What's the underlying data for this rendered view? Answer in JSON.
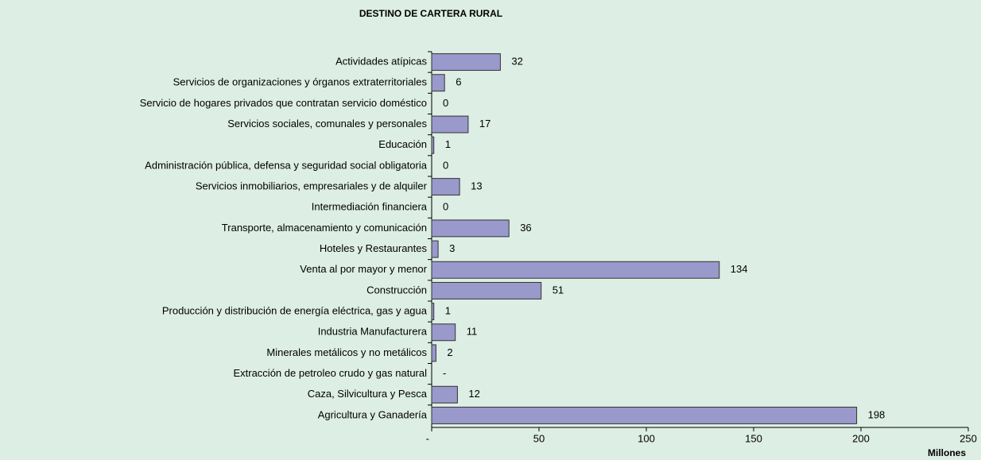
{
  "chart_data": {
    "type": "bar",
    "orientation": "horizontal",
    "title": "DESTINO DE CARTERA RURAL",
    "categories": [
      "Actividades atípicas",
      "Servicios de organizaciones y órganos extraterritoriales",
      "Servicio de hogares privados que contratan servicio doméstico",
      "Servicios sociales, comunales y personales",
      "Educación",
      "Administración pública, defensa y seguridad social obligatoria",
      "Servicios inmobiliarios, empresariales y de alquiler",
      "Intermediación financiera",
      "Transporte, almacenamiento y comunicación",
      "Hoteles y Restaurantes",
      "Venta al por mayor y menor",
      "Construcción",
      "Producción y distribución de energía eléctrica, gas y agua",
      "Industria Manufacturera",
      "Minerales metálicos y no metálicos",
      "Extracción de petroleo crudo y gas natural",
      "Caza, Silvicultura y Pesca",
      "Agricultura y Ganadería"
    ],
    "values": [
      32,
      6,
      0,
      17,
      1,
      0,
      13,
      0,
      36,
      3,
      134,
      51,
      1,
      11,
      2,
      0,
      12,
      198
    ],
    "value_labels": [
      "32",
      "6",
      "0",
      "17",
      "1",
      "0",
      "13",
      "0",
      "36",
      "3",
      "134",
      "51",
      "1",
      "11",
      "2",
      "-",
      "12",
      "198"
    ],
    "color": "#9999cc",
    "xlabel": "Millones",
    "xlim": [
      0,
      250
    ],
    "xticks": [
      {
        "value": 0,
        "label": "-"
      },
      50,
      100,
      150,
      200,
      250
    ]
  }
}
